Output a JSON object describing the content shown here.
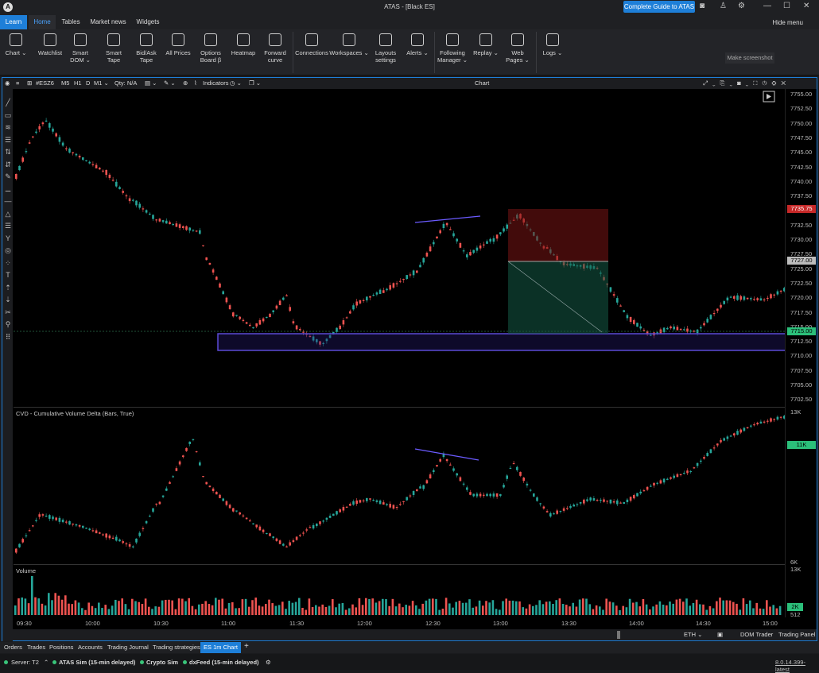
{
  "window": {
    "title": "ATAS - [Black ES]",
    "guide_button": "Complete Guide to ATAS",
    "hide_menu": "Hide menu",
    "make_screenshot": "Make screenshot"
  },
  "ribbon_tabs": [
    "Learn",
    "Home",
    "Tables",
    "Market news",
    "Widgets"
  ],
  "ribbon": [
    {
      "label": "Chart ⌄"
    },
    {
      "label": "Watchlist"
    },
    {
      "label": "Smart DOM ⌄"
    },
    {
      "label": "Smart Tape"
    },
    {
      "label": "Bid/Ask Tape"
    },
    {
      "label": "All Prices"
    },
    {
      "label": "Options Board β"
    },
    {
      "label": "Heatmap"
    },
    {
      "label": "Forward curve"
    },
    {
      "label": "Connections"
    },
    {
      "label": "Workspaces ⌄"
    },
    {
      "label": "Layouts settings"
    },
    {
      "label": "Alerts ⌄"
    },
    {
      "label": "Following Manager ⌄"
    },
    {
      "label": "Replay ⌄"
    },
    {
      "label": "Web Pages ⌄"
    },
    {
      "label": "Logs ⌄"
    }
  ],
  "chart_toolbar": {
    "symbol": "#ESZ6",
    "tf": [
      "M5",
      "H1",
      "D",
      "M1 ⌄"
    ],
    "qty": "Qty: N/A",
    "indicators": "Indicators",
    "title": "Chart"
  },
  "price_scale": [
    "7755.00",
    "7752.50",
    "7750.00",
    "7747.50",
    "7745.00",
    "7742.50",
    "7740.00",
    "7737.50",
    "7735.00",
    "7732.50",
    "7730.00",
    "7727.50",
    "7725.00",
    "7722.50",
    "7720.00",
    "7717.50",
    "7715.00",
    "7712.50",
    "7710.00",
    "7707.50",
    "7705.00",
    "7702.50"
  ],
  "price_tags": {
    "stop": "7735.75",
    "entry": "7727.00",
    "current": "7715.00"
  },
  "cvd": {
    "label": "CVD - Cumulative Volume Delta (Bars, True)",
    "top": "13K",
    "value": "11K",
    "bottom": "6K"
  },
  "volume": {
    "label": "Volume",
    "top": "13K",
    "value": "2K",
    "bottom": "512"
  },
  "time_axis": [
    "09:30",
    "10:00",
    "10:30",
    "11:00",
    "11:30",
    "12:00",
    "12:30",
    "13:00",
    "13:30",
    "14:00",
    "14:30",
    "15:00"
  ],
  "chart_bottom": {
    "session": "ETH ⌄",
    "dom_trader": "DOM Trader",
    "trading_panel": "Trading Panel"
  },
  "bottom_tabs": [
    "Orders",
    "Trades",
    "Positions",
    "Accounts",
    "Trading Journal",
    "Trading strategies",
    "ES 1m Chart"
  ],
  "status": {
    "server": "Server: T2",
    "conn1": "ATAS Sim (15-min delayed)",
    "conn2": "Crypto Sim",
    "conn3": "dxFeed (15-min delayed)",
    "version": "8.0.14.399-latest"
  },
  "colors": {
    "up": "#26a69a",
    "down": "#ef5350",
    "accent": "#1e7fd8",
    "zone": "#5b4bd6"
  }
}
